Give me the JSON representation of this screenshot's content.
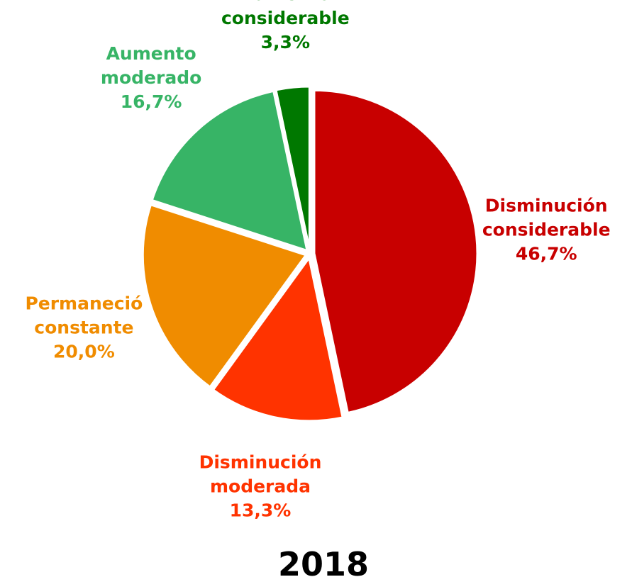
{
  "chart_data": {
    "type": "pie",
    "title": "2018",
    "categories": [
      "Disminución considerable",
      "Disminución moderada",
      "Permaneció constante",
      "Aumento moderado",
      "Aumento considerable"
    ],
    "values": [
      46.7,
      13.3,
      20.0,
      16.7,
      3.3
    ],
    "value_labels": [
      "46,7%",
      "13,3%",
      "20,0%",
      "16,7%",
      "3,3%"
    ],
    "colors": [
      "#c80000",
      "#ff3300",
      "#f08c00",
      "#37b466",
      "#007800"
    ]
  }
}
